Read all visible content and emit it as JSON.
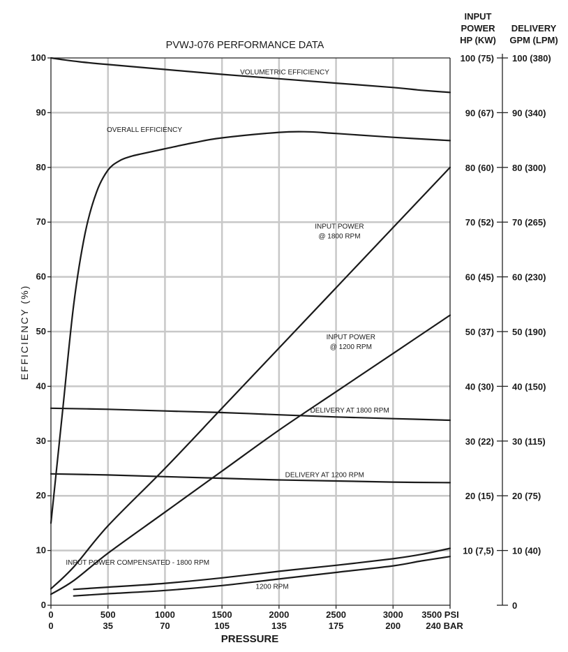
{
  "chart_data": {
    "type": "line",
    "title": "PVWJ-076 PERFORMANCE DATA",
    "ylabel": "EFFICIENCY (%)",
    "xlabel": "PRESSURE",
    "xlim": [
      0,
      3500
    ],
    "ylim": [
      0,
      100
    ],
    "grid": true,
    "x_ticks_psi": [
      "0",
      "500",
      "1000",
      "1500",
      "2000",
      "2500",
      "3000",
      "3500 PSI"
    ],
    "x_ticks_bar": [
      "0",
      "35",
      "70",
      "105",
      "135",
      "175",
      "200",
      "240 BAR"
    ],
    "y_ticks": [
      "0",
      "10",
      "20",
      "30",
      "40",
      "50",
      "60",
      "70",
      "80",
      "90",
      "100"
    ],
    "right_axes": {
      "input_power": {
        "header": [
          "INPUT",
          "POWER",
          "HP (KW)"
        ],
        "ticks": [
          {
            "y": 100,
            "label": "100 (75)"
          },
          {
            "y": 90,
            "label": "90 (67)"
          },
          {
            "y": 80,
            "label": "80 (60)"
          },
          {
            "y": 70,
            "label": "70 (52)"
          },
          {
            "y": 60,
            "label": "60 (45)"
          },
          {
            "y": 50,
            "label": "50 (37)"
          },
          {
            "y": 40,
            "label": "40 (30)"
          },
          {
            "y": 30,
            "label": "30 (22)"
          },
          {
            "y": 20,
            "label": "20 (15)"
          },
          {
            "y": 10,
            "label": "10 (7,5)"
          }
        ]
      },
      "delivery": {
        "header": [
          "DELIVERY",
          "GPM (LPM)"
        ],
        "ticks": [
          {
            "y": 100,
            "label": "100 (380)"
          },
          {
            "y": 90,
            "label": "90 (340)"
          },
          {
            "y": 80,
            "label": "80 (300)"
          },
          {
            "y": 70,
            "label": "70 (265)"
          },
          {
            "y": 60,
            "label": "60 (230)"
          },
          {
            "y": 50,
            "label": "50 (190)"
          },
          {
            "y": 40,
            "label": "40 (150)"
          },
          {
            "y": 30,
            "label": "30 (115)"
          },
          {
            "y": 20,
            "label": "20 (75)"
          },
          {
            "y": 10,
            "label": "10 (40)"
          },
          {
            "y": 0,
            "label": "0"
          }
        ]
      }
    },
    "series": [
      {
        "name": "VOLUMETRIC EFFICIENCY",
        "x": [
          0,
          100,
          250,
          500,
          1000,
          1500,
          2000,
          2500,
          3000,
          3250,
          3500
        ],
        "y": [
          100,
          99.7,
          99.3,
          98.8,
          97.9,
          97.0,
          96.2,
          95.4,
          94.6,
          94.1,
          93.7
        ]
      },
      {
        "name": "OVERALL EFFICIENCY",
        "x": [
          0,
          100,
          200,
          300,
          400,
          500,
          600,
          700,
          800,
          1000,
          1250,
          1500,
          2000,
          2250,
          2500,
          3000,
          3500
        ],
        "y": [
          15,
          35,
          55,
          68,
          75.5,
          79.5,
          81.2,
          82,
          82.5,
          83.4,
          84.5,
          85.4,
          86.4,
          86.5,
          86.2,
          85.5,
          84.9
        ]
      },
      {
        "name": "INPUT POWER @ 1800 RPM",
        "x": [
          0,
          200,
          500,
          1000,
          1500,
          2000,
          2500,
          3000,
          3500
        ],
        "y": [
          3,
          7,
          14.5,
          25,
          36,
          47,
          58,
          69,
          80
        ]
      },
      {
        "name": "INPUT POWER @ 1200 RPM",
        "x": [
          0,
          200,
          500,
          1000,
          1500,
          2000,
          2500,
          3000,
          3500
        ],
        "y": [
          2,
          4.5,
          9.5,
          17,
          24.5,
          32,
          39,
          46,
          53
        ]
      },
      {
        "name": "DELIVERY AT 1800 RPM",
        "x": [
          0,
          500,
          1000,
          1500,
          2000,
          2500,
          3000,
          3500
        ],
        "y": [
          36,
          35.8,
          35.5,
          35.2,
          34.8,
          34.4,
          34.1,
          33.8
        ]
      },
      {
        "name": "DELIVERY AT 1200 RPM",
        "x": [
          0,
          500,
          1000,
          1500,
          2000,
          2500,
          3000,
          3500
        ],
        "y": [
          24,
          23.8,
          23.5,
          23.2,
          22.9,
          22.7,
          22.5,
          22.4
        ]
      },
      {
        "name": "INPUT POWER COMPENSATED - 1800 RPM",
        "x": [
          200,
          500,
          1000,
          1500,
          2000,
          2500,
          3000,
          3250,
          3500
        ],
        "y": [
          2.9,
          3.3,
          4,
          5,
          6.2,
          7.3,
          8.5,
          9.3,
          10.4
        ]
      },
      {
        "name": "1200 RPM",
        "x": [
          200,
          500,
          1000,
          1500,
          2000,
          2500,
          3000,
          3250,
          3500
        ],
        "y": [
          1.7,
          2.1,
          2.7,
          3.6,
          4.8,
          6,
          7.2,
          8.1,
          8.9
        ]
      }
    ],
    "annotations": [
      {
        "text": "VOLUMETRIC EFFICIENCY",
        "x": 2050,
        "y": 97
      },
      {
        "text": "OVERALL EFFICIENCY",
        "x": 820,
        "y": 86.5
      },
      {
        "text": "INPUT POWER",
        "x": 2530,
        "y": 68.8
      },
      {
        "text": "@ 1800 RPM",
        "x": 2530,
        "y": 67
      },
      {
        "text": "INPUT POWER",
        "x": 2630,
        "y": 48.6
      },
      {
        "text": "@ 1200 RPM",
        "x": 2630,
        "y": 46.8
      },
      {
        "text": "DELIVERY AT 1800 RPM",
        "x": 2620,
        "y": 35.2
      },
      {
        "text": "DELIVERY AT 1200 RPM",
        "x": 2400,
        "y": 23.4
      },
      {
        "text": "INPUT POWER COMPENSATED - 1800 RPM",
        "x": 760,
        "y": 7.4
      },
      {
        "text": "1200 RPM",
        "x": 1940,
        "y": 3
      }
    ]
  }
}
